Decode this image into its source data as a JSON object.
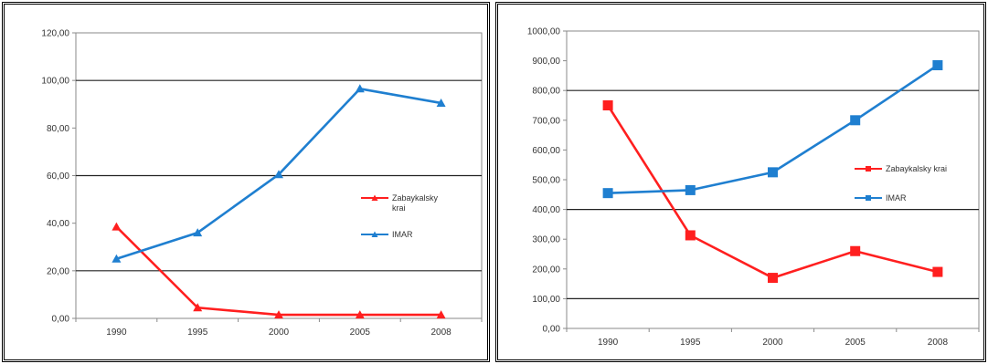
{
  "chart_data": [
    {
      "type": "line",
      "categories": [
        "1990",
        "1995",
        "2000",
        "2005",
        "2008"
      ],
      "series": [
        {
          "name": "Zabaykalsky krai",
          "values": [
            38.5,
            4.5,
            1.5,
            1.5,
            1.5
          ],
          "color": "#ff1f1f",
          "marker": "triangle"
        },
        {
          "name": "IMAR",
          "values": [
            25,
            36,
            60.5,
            96.5,
            90.5
          ],
          "color": "#1f7fd0",
          "marker": "triangle"
        }
      ],
      "legend_lines": [
        [
          "Zabaykalsky",
          "krai"
        ],
        [
          "IMAR"
        ]
      ],
      "y_ticks": [
        "0,00",
        "20,00",
        "40,00",
        "60,00",
        "80,00",
        "100,00",
        "120,00"
      ],
      "ylim": [
        0,
        120
      ],
      "grid": "major horizontal",
      "legend_position": "right",
      "title": "",
      "xlabel": "",
      "ylabel": ""
    },
    {
      "type": "line",
      "categories": [
        "1990",
        "1995",
        "2000",
        "2005",
        "2008"
      ],
      "series": [
        {
          "name": "Zabaykalsky krai",
          "values": [
            750,
            313,
            170,
            260,
            190
          ],
          "color": "#ff1f1f",
          "marker": "square"
        },
        {
          "name": "IMAR",
          "values": [
            455,
            465,
            525,
            700,
            885
          ],
          "color": "#1f7fd0",
          "marker": "square"
        }
      ],
      "legend_lines": [
        [
          "Zabaykalsky krai"
        ],
        [
          "IMAR"
        ]
      ],
      "y_ticks": [
        "0,00",
        "100,00",
        "200,00",
        "300,00",
        "400,00",
        "500,00",
        "600,00",
        "700,00",
        "800,00",
        "900,00",
        "1000,00"
      ],
      "ylim": [
        0,
        1000
      ],
      "grid": "horizontal at 100, 400, 800",
      "legend_position": "right",
      "title": "",
      "xlabel": "",
      "ylabel": ""
    }
  ]
}
